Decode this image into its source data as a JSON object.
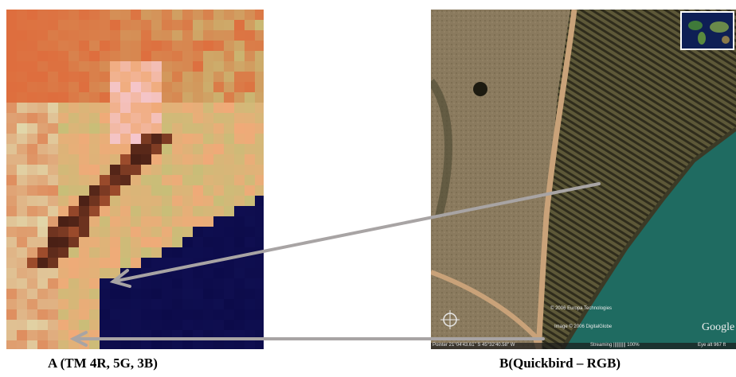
{
  "captions": {
    "a": "A (TM 4R, 5G, 3B)",
    "b": "B(Quickbird – RGB)"
  },
  "overlay": {
    "copyright_1": "© 2006 Europa Technologies",
    "copyright_2": "Image © 2006 DigitalGlobe",
    "brand": "Google",
    "status_pointer": "Pointer 21°04'43.61\" S 45°32'40.58\" W",
    "status_streaming": "Streaming |||||||||| 100%",
    "status_eye": "Eye alt 967 ft"
  },
  "colors": {
    "arrow": "#a8a4a4",
    "water_tm": "#0c0b4a",
    "water_qb": "#1f6b61",
    "road": "#c9a279"
  }
}
